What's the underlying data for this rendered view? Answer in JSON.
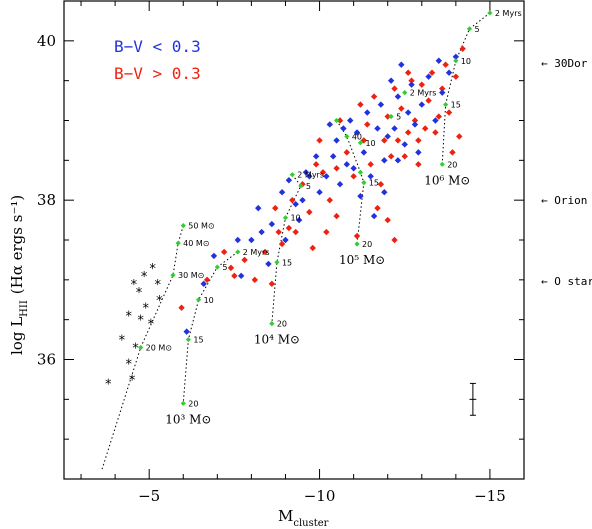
{
  "chart_data": {
    "type": "scatter",
    "title": "",
    "xlabel": "M",
    "xlabel_sub": "cluster",
    "ylabel": "log L",
    "ylabel_sub": "HII",
    "ylabel_units": "(Hα ergs s⁻¹)",
    "xlim": [
      -2.5,
      -16
    ],
    "ylim": [
      34.5,
      40.5
    ],
    "x_ticks": [
      -5,
      -10,
      -15
    ],
    "x_tick_labels": [
      "−5",
      "−10",
      "−15"
    ],
    "y_ticks": [
      36,
      38,
      40
    ],
    "y_tick_labels": [
      "36",
      "38",
      "40"
    ],
    "legend": [
      {
        "label": "B−V < 0.3",
        "color": "#2233dd"
      },
      {
        "label": "B−V > 0.3",
        "color": "#ee2211"
      }
    ],
    "right_annotations": [
      {
        "label": "← 30Dor",
        "y": 39.7
      },
      {
        "label": "← Orion",
        "y": 38.0
      },
      {
        "label": "← O star",
        "y": 37.0
      }
    ],
    "tracks": [
      {
        "mass_label_num": "10³",
        "mass_label_unit": "M⊙",
        "points": [
          {
            "x": -6.0,
            "y": 37.68,
            "label": "50 M⊙"
          },
          {
            "x": -5.85,
            "y": 37.46,
            "label": "40 M⊙"
          },
          {
            "x": -5.7,
            "y": 37.06,
            "label": "30 M⊙"
          },
          {
            "x": -4.75,
            "y": 36.15,
            "label": "20 M⊙"
          },
          {
            "x": -3.6,
            "y": 34.6,
            "label": ""
          }
        ]
      },
      {
        "mass_label_num": "10³",
        "mass_label_unit": "M⊙",
        "points": [
          {
            "x": -7.6,
            "y": 37.35,
            "label": "2 Myrs"
          },
          {
            "x": -7.0,
            "y": 37.16,
            "label": "5"
          },
          {
            "x": -6.45,
            "y": 36.75,
            "label": "10"
          },
          {
            "x": -6.15,
            "y": 36.25,
            "label": "15"
          },
          {
            "x": -6.0,
            "y": 35.45,
            "label": "20"
          }
        ]
      },
      {
        "mass_label_num": "10⁴",
        "mass_label_unit": "M⊙",
        "points": [
          {
            "x": -9.2,
            "y": 38.32,
            "label": "2 Myrs"
          },
          {
            "x": -9.45,
            "y": 38.18,
            "label": "5"
          },
          {
            "x": -9.0,
            "y": 37.78,
            "label": "10"
          },
          {
            "x": -8.75,
            "y": 37.22,
            "label": "15"
          },
          {
            "x": -8.6,
            "y": 36.45,
            "label": "20"
          }
        ]
      },
      {
        "mass_label_num": "10⁵",
        "mass_label_unit": "M⊙",
        "points": [
          {
            "x": -10.5,
            "y": 39.0,
            "label": ""
          },
          {
            "x": -10.8,
            "y": 38.8,
            "label": "40"
          },
          {
            "x": -11.2,
            "y": 38.35,
            "label": ""
          },
          {
            "x": -11.3,
            "y": 38.22,
            "label": "15"
          },
          {
            "x": -11.1,
            "y": 37.45,
            "label": "20"
          }
        ]
      },
      {
        "mass_label_num": "10⁶",
        "mass_label_unit": "M⊙",
        "points": [
          {
            "x": -15.0,
            "y": 40.35,
            "label": "2 Myrs"
          },
          {
            "x": -14.4,
            "y": 40.15,
            "label": "5"
          },
          {
            "x": -14.0,
            "y": 39.75,
            "label": "10"
          },
          {
            "x": -13.7,
            "y": 39.2,
            "label": "15"
          },
          {
            "x": -13.6,
            "y": 38.45,
            "label": "20"
          }
        ]
      }
    ],
    "extra_green_labels": [
      {
        "x": -12.5,
        "y": 39.35,
        "label": "2 Myrs"
      },
      {
        "x": -12.1,
        "y": 39.05,
        "label": "5"
      },
      {
        "x": -11.2,
        "y": 38.72,
        "label": "10"
      }
    ],
    "black_stars": [
      [
        -3.8,
        35.7
      ],
      [
        -4.2,
        36.25
      ],
      [
        -4.4,
        35.95
      ],
      [
        -4.5,
        35.75
      ],
      [
        -4.6,
        36.15
      ],
      [
        -4.75,
        36.5
      ],
      [
        -4.9,
        36.65
      ],
      [
        -5.05,
        36.45
      ],
      [
        -5.25,
        36.95
      ],
      [
        -5.3,
        36.75
      ],
      [
        -4.7,
        36.85
      ],
      [
        -4.4,
        36.55
      ],
      [
        -4.85,
        37.05
      ],
      [
        -5.1,
        37.15
      ],
      [
        -4.55,
        36.95
      ]
    ],
    "blue_points": [
      [
        -6.1,
        36.35
      ],
      [
        -6.6,
        36.95
      ],
      [
        -6.9,
        37.3
      ],
      [
        -7.6,
        37.5
      ],
      [
        -7.7,
        37.05
      ],
      [
        -8.0,
        37.5
      ],
      [
        -8.3,
        37.6
      ],
      [
        -8.6,
        37.7
      ],
      [
        -8.9,
        38.1
      ],
      [
        -9.1,
        38.25
      ],
      [
        -9.3,
        37.95
      ],
      [
        -9.5,
        38.0
      ],
      [
        -9.7,
        38.3
      ],
      [
        -9.9,
        38.55
      ],
      [
        -10.0,
        38.1
      ],
      [
        -10.2,
        38.3
      ],
      [
        -10.4,
        38.55
      ],
      [
        -10.5,
        38.75
      ],
      [
        -10.7,
        38.9
      ],
      [
        -10.9,
        39.0
      ],
      [
        -11.0,
        38.4
      ],
      [
        -11.1,
        38.85
      ],
      [
        -11.3,
        38.6
      ],
      [
        -11.4,
        39.1
      ],
      [
        -11.5,
        38.3
      ],
      [
        -11.7,
        38.9
      ],
      [
        -11.8,
        39.2
      ],
      [
        -11.9,
        38.5
      ],
      [
        -12.0,
        38.8
      ],
      [
        -12.1,
        39.5
      ],
      [
        -12.2,
        38.9
      ],
      [
        -12.3,
        39.3
      ],
      [
        -12.4,
        39.7
      ],
      [
        -12.5,
        38.7
      ],
      [
        -12.6,
        39.1
      ],
      [
        -12.7,
        39.45
      ],
      [
        -12.8,
        38.95
      ],
      [
        -13.0,
        39.2
      ],
      [
        -13.2,
        39.55
      ],
      [
        -13.4,
        39.0
      ],
      [
        -13.6,
        39.35
      ],
      [
        -13.8,
        39.6
      ],
      [
        -14.0,
        39.8
      ],
      [
        -9.0,
        37.5
      ],
      [
        -8.5,
        37.2
      ],
      [
        -10.3,
        38.95
      ],
      [
        -10.6,
        38.2
      ],
      [
        -11.2,
        38.05
      ],
      [
        -11.6,
        37.8
      ],
      [
        -9.6,
        38.35
      ],
      [
        -12.9,
        38.6
      ],
      [
        -11.9,
        38.1
      ],
      [
        -10.8,
        38.45
      ],
      [
        -9.4,
        37.75
      ],
      [
        -8.2,
        37.9
      ],
      [
        -13.5,
        39.75
      ],
      [
        -12.3,
        38.5
      ]
    ],
    "red_points": [
      [
        -5.95,
        36.65
      ],
      [
        -6.7,
        37.0
      ],
      [
        -7.2,
        37.35
      ],
      [
        -7.5,
        37.05
      ],
      [
        -7.8,
        37.25
      ],
      [
        -8.1,
        37.0
      ],
      [
        -8.4,
        37.35
      ],
      [
        -8.7,
        37.9
      ],
      [
        -8.9,
        37.45
      ],
      [
        -9.1,
        37.65
      ],
      [
        -9.3,
        37.6
      ],
      [
        -9.5,
        38.2
      ],
      [
        -9.7,
        37.85
      ],
      [
        -9.9,
        38.45
      ],
      [
        -10.1,
        38.35
      ],
      [
        -10.3,
        38.0
      ],
      [
        -10.5,
        38.4
      ],
      [
        -10.6,
        39.0
      ],
      [
        -10.8,
        38.6
      ],
      [
        -11.0,
        38.3
      ],
      [
        -11.1,
        37.55
      ],
      [
        -11.3,
        38.75
      ],
      [
        -11.5,
        38.45
      ],
      [
        -11.6,
        39.3
      ],
      [
        -11.8,
        38.2
      ],
      [
        -11.9,
        38.75
      ],
      [
        -12.0,
        39.05
      ],
      [
        -12.1,
        38.55
      ],
      [
        -12.2,
        39.4
      ],
      [
        -12.3,
        38.75
      ],
      [
        -12.4,
        39.15
      ],
      [
        -12.5,
        38.55
      ],
      [
        -12.6,
        38.85
      ],
      [
        -12.7,
        39.5
      ],
      [
        -12.8,
        39.0
      ],
      [
        -12.9,
        38.75
      ],
      [
        -13.0,
        39.45
      ],
      [
        -13.1,
        38.9
      ],
      [
        -13.2,
        39.25
      ],
      [
        -13.3,
        39.6
      ],
      [
        -13.4,
        38.85
      ],
      [
        -13.5,
        39.05
      ],
      [
        -13.6,
        39.4
      ],
      [
        -13.7,
        39.7
      ],
      [
        -13.8,
        39.1
      ],
      [
        -14.0,
        39.55
      ],
      [
        -14.1,
        38.8
      ],
      [
        -12.2,
        37.5
      ],
      [
        -12.0,
        37.75
      ],
      [
        -10.5,
        37.8
      ],
      [
        -9.8,
        37.4
      ],
      [
        -8.8,
        37.6
      ],
      [
        -7.4,
        37.15
      ],
      [
        -11.7,
        37.9
      ],
      [
        -10.2,
        37.6
      ],
      [
        -12.9,
        38.45
      ],
      [
        -11.4,
        38.95
      ],
      [
        -10.0,
        38.75
      ],
      [
        -9.2,
        38.0
      ],
      [
        -8.6,
        36.95
      ],
      [
        -13.9,
        38.6
      ],
      [
        -12.6,
        39.6
      ],
      [
        -11.2,
        39.2
      ],
      [
        -14.2,
        39.9
      ]
    ],
    "error_bar": {
      "x": -14.5,
      "y": 35.5,
      "y_err": 0.2,
      "x_err": 0.1
    }
  },
  "colors": {
    "blue": "#2233dd",
    "red": "#ee2211",
    "green": "#33cc33",
    "black": "#000000"
  }
}
